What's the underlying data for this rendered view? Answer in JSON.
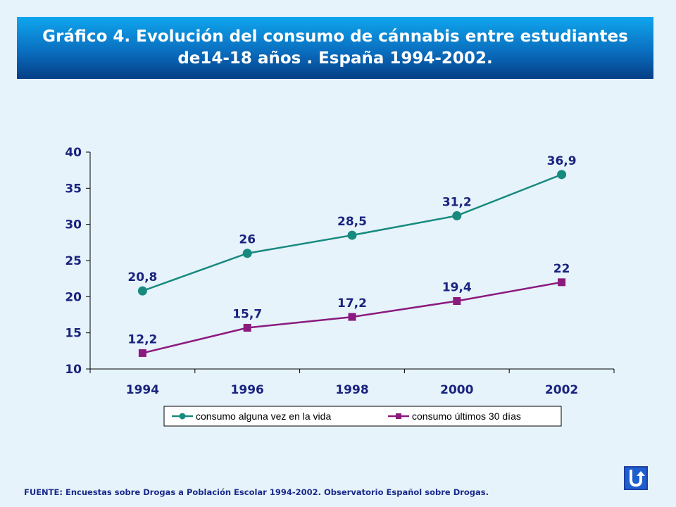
{
  "title": {
    "line1": "Gráfico 4. Evolución del  consumo de cánnabis entre estudiantes",
    "line2": "de14-18 años . España 1994-2002."
  },
  "chart_data": {
    "type": "line",
    "categories": [
      "1994",
      "1996",
      "1998",
      "2000",
      "2002"
    ],
    "ylim": [
      10,
      40
    ],
    "yticks": [
      "10",
      "15",
      "20",
      "25",
      "30",
      "35",
      "40"
    ],
    "series": [
      {
        "name": "consumo alguna vez en la vida",
        "values": [
          20.8,
          26,
          28.5,
          31.2,
          36.9
        ],
        "labels": [
          "20,8",
          "26",
          "28,5",
          "31,2",
          "36,9"
        ],
        "color": "#178a7e",
        "marker": "circle"
      },
      {
        "name": "consumo últimos 30 días",
        "values": [
          12.2,
          15.7,
          17.2,
          19.4,
          22
        ],
        "labels": [
          "12,2",
          "15,7",
          "17,2",
          "19,4",
          "22"
        ],
        "color": "#8b1a7e",
        "marker": "square"
      }
    ],
    "legend": "bottom",
    "grid": false
  },
  "source": "FUENTE: Encuestas sobre Drogas a Población Escolar 1994-2002.  Observatorio Español sobre Drogas.",
  "colors": {
    "label_text": "#1a237e",
    "axis": "#000000",
    "banner_top": "#0fa6ee",
    "banner_bottom": "#043e86"
  },
  "nav": {
    "return_icon": "u-turn-return-icon"
  }
}
